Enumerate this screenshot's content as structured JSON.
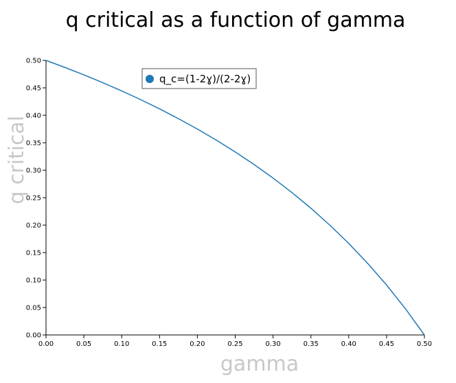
{
  "chart_data": {
    "type": "line",
    "title": "q critical as a function of gamma",
    "xlabel": "gamma",
    "ylabel": "q critical",
    "xlim": [
      0.0,
      0.5
    ],
    "ylim": [
      0.0,
      0.5
    ],
    "x_ticks": [
      "0.00",
      "0.05",
      "0.10",
      "0.15",
      "0.20",
      "0.25",
      "0.30",
      "0.35",
      "0.40",
      "0.45",
      "0.50"
    ],
    "y_ticks": [
      "0.00",
      "0.05",
      "0.10",
      "0.15",
      "0.20",
      "0.25",
      "0.30",
      "0.35",
      "0.40",
      "0.45",
      "0.50"
    ],
    "grid": false,
    "legend_position": "top-left",
    "series": [
      {
        "name": "q_c=(1-2ɣ)/(2-2ɣ)",
        "color": "#1f77b4",
        "x": [
          0.0,
          0.025,
          0.05,
          0.075,
          0.1,
          0.125,
          0.15,
          0.175,
          0.2,
          0.225,
          0.25,
          0.275,
          0.3,
          0.325,
          0.35,
          0.375,
          0.4,
          0.425,
          0.45,
          0.475,
          0.5
        ],
        "y": [
          0.5,
          0.4872,
          0.4737,
          0.4595,
          0.4444,
          0.4286,
          0.4118,
          0.3939,
          0.375,
          0.3548,
          0.3333,
          0.3103,
          0.2857,
          0.2593,
          0.2308,
          0.2,
          0.1667,
          0.1304,
          0.0909,
          0.0476,
          0.0
        ]
      }
    ]
  }
}
